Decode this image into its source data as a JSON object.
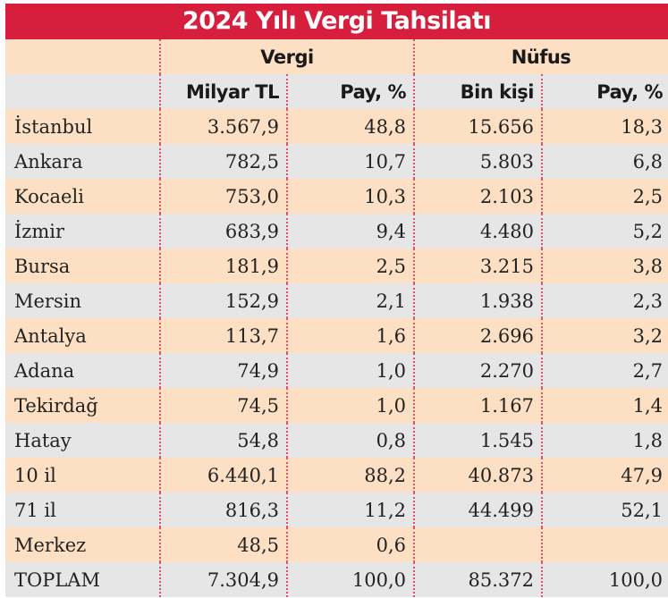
{
  "title": "2024 Yılı Vergi Tahsilatı",
  "groups": [
    "Vergi",
    "Nüfus"
  ],
  "columns": [
    "Milyar TL",
    "Pay, %",
    "Bin kişi",
    "Pay, %"
  ],
  "rows": [
    [
      "İstanbul",
      "3.567,9",
      "48,8",
      "15.656",
      "18,3"
    ],
    [
      "Ankara",
      "782,5",
      "10,7",
      "5.803",
      "6,8"
    ],
    [
      "Kocaeli",
      "753,0",
      "10,3",
      "2.103",
      "2,5"
    ],
    [
      "İzmir",
      "683,9",
      "9,4",
      "4.480",
      "5,2"
    ],
    [
      "Bursa",
      "181,9",
      "2,5",
      "3.215",
      "3,8"
    ],
    [
      "Mersin",
      "152,9",
      "2,1",
      "1.938",
      "2,3"
    ],
    [
      "Antalya",
      "113,7",
      "1,6",
      "2.696",
      "3,2"
    ],
    [
      "Adana",
      "74,9",
      "1,0",
      "2.270",
      "2,7"
    ],
    [
      "Tekirdağ",
      "74,5",
      "1,0",
      "1.167",
      "1,4"
    ],
    [
      "Hatay",
      "54,8",
      "0,8",
      "1.545",
      "1,8"
    ],
    [
      "10 il",
      "6.440,1",
      "88,2",
      "40.873",
      "47,9"
    ],
    [
      "71 il",
      "816,3",
      "11,2",
      "44.499",
      "52,1"
    ],
    [
      "Merkez",
      "48,5",
      "0,6",
      "",
      ""
    ],
    [
      "TOPLAM",
      "7.304,9",
      "100,0",
      "85.372",
      "100,0"
    ]
  ],
  "colors": {
    "title_bg": "#d81e3d",
    "row_peach": "#fde0c4",
    "row_gray": "#e6e6e6",
    "divider": "#e3506a"
  }
}
